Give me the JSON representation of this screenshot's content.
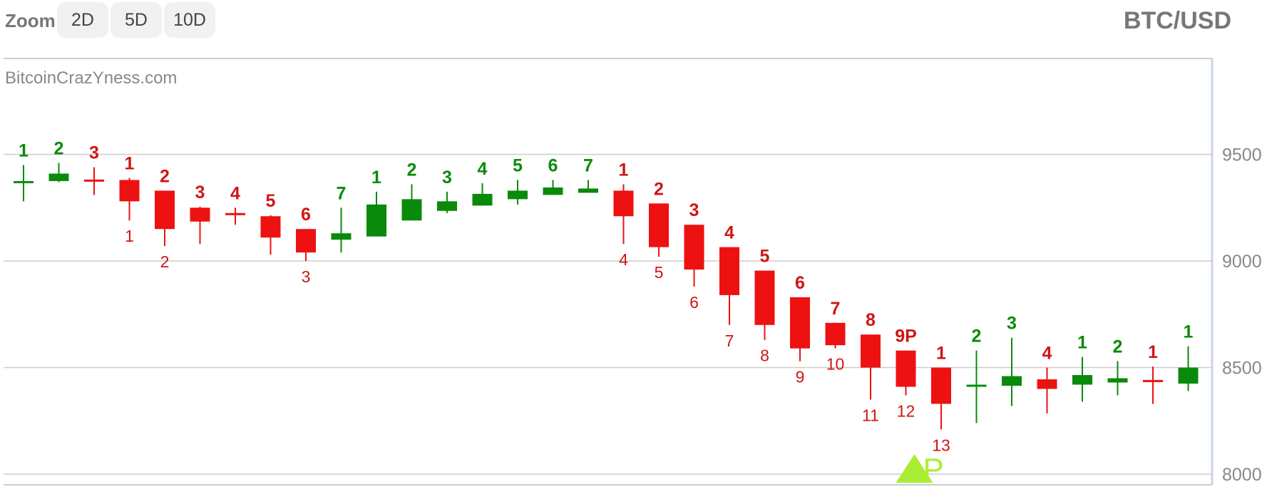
{
  "toolbar": {
    "zoom_label": "Zoom",
    "buttons": [
      "2D",
      "5D",
      "10D"
    ],
    "pair": "BTC/USD"
  },
  "colors": {
    "up": "#0a8a0a",
    "down": "#ee1111",
    "grid": "#cccccc",
    "axis_text": "#888888",
    "marker": "#aaee33",
    "label_red": "#d01515"
  },
  "chart_data": {
    "type": "candlestick",
    "watermark": "BitcoinCrazYness.com",
    "ylim": [
      7950,
      9950
    ],
    "y_ticks": [
      8000,
      8500,
      9000,
      9500
    ],
    "grid": true,
    "candles": [
      {
        "o": 9370,
        "h": 9450,
        "l": 9280,
        "c": 9375,
        "top": "1",
        "bottom": ""
      },
      {
        "o": 9375,
        "h": 9460,
        "l": 9370,
        "c": 9410,
        "top": "2",
        "bottom": ""
      },
      {
        "o": 9382,
        "h": 9440,
        "l": 9310,
        "c": 9378,
        "top": "3",
        "bottom": ""
      },
      {
        "o": 9380,
        "h": 9390,
        "l": 9190,
        "c": 9280,
        "top": "1",
        "bottom": "1"
      },
      {
        "o": 9330,
        "h": 9330,
        "l": 9070,
        "c": 9150,
        "top": "2",
        "bottom": "2"
      },
      {
        "o": 9250,
        "h": 9255,
        "l": 9080,
        "c": 9185,
        "top": "3",
        "bottom": ""
      },
      {
        "o": 9225,
        "h": 9250,
        "l": 9170,
        "c": 9215,
        "top": "4",
        "bottom": ""
      },
      {
        "o": 9210,
        "h": 9215,
        "l": 9030,
        "c": 9110,
        "top": "5",
        "bottom": ""
      },
      {
        "o": 9150,
        "h": 9150,
        "l": 9000,
        "c": 9040,
        "top": "6",
        "bottom": "3"
      },
      {
        "o": 9100,
        "h": 9250,
        "l": 9040,
        "c": 9130,
        "top": "7",
        "bottom": ""
      },
      {
        "o": 9115,
        "h": 9325,
        "l": 9115,
        "c": 9265,
        "top": "1",
        "bottom": ""
      },
      {
        "o": 9190,
        "h": 9360,
        "l": 9190,
        "c": 9290,
        "top": "2",
        "bottom": ""
      },
      {
        "o": 9235,
        "h": 9325,
        "l": 9225,
        "c": 9280,
        "top": "3",
        "bottom": ""
      },
      {
        "o": 9260,
        "h": 9365,
        "l": 9260,
        "c": 9315,
        "top": "4",
        "bottom": ""
      },
      {
        "o": 9290,
        "h": 9380,
        "l": 9265,
        "c": 9330,
        "top": "5",
        "bottom": ""
      },
      {
        "o": 9310,
        "h": 9380,
        "l": 9310,
        "c": 9345,
        "top": "6",
        "bottom": ""
      },
      {
        "o": 9320,
        "h": 9380,
        "l": 9320,
        "c": 9340,
        "top": "7",
        "bottom": ""
      },
      {
        "o": 9330,
        "h": 9360,
        "l": 9080,
        "c": 9210,
        "top": "1",
        "bottom": "4"
      },
      {
        "o": 9270,
        "h": 9270,
        "l": 9020,
        "c": 9065,
        "top": "2",
        "bottom": "5"
      },
      {
        "o": 9170,
        "h": 9170,
        "l": 8880,
        "c": 8960,
        "top": "3",
        "bottom": "6"
      },
      {
        "o": 9065,
        "h": 9065,
        "l": 8700,
        "c": 8840,
        "top": "4",
        "bottom": "7"
      },
      {
        "o": 8955,
        "h": 8955,
        "l": 8630,
        "c": 8700,
        "top": "5",
        "bottom": "8"
      },
      {
        "o": 8830,
        "h": 8830,
        "l": 8530,
        "c": 8590,
        "top": "6",
        "bottom": "9"
      },
      {
        "o": 8710,
        "h": 8710,
        "l": 8590,
        "c": 8605,
        "top": "7",
        "bottom": "10"
      },
      {
        "o": 8655,
        "h": 8655,
        "l": 8350,
        "c": 8500,
        "top": "8",
        "bottom": "11"
      },
      {
        "o": 8580,
        "h": 8580,
        "l": 8370,
        "c": 8410,
        "top": "9P",
        "bottom": "12"
      },
      {
        "o": 8500,
        "h": 8500,
        "l": 8210,
        "c": 8330,
        "top": "1",
        "bottom": "13"
      },
      {
        "o": 8420,
        "h": 8580,
        "l": 8240,
        "c": 8420,
        "top": "2",
        "bottom": ""
      },
      {
        "o": 8415,
        "h": 8640,
        "l": 8320,
        "c": 8460,
        "top": "3",
        "bottom": ""
      },
      {
        "o": 8445,
        "h": 8500,
        "l": 8285,
        "c": 8400,
        "top": "4",
        "bottom": ""
      },
      {
        "o": 8420,
        "h": 8550,
        "l": 8340,
        "c": 8465,
        "top": "1",
        "bottom": ""
      },
      {
        "o": 8430,
        "h": 8530,
        "l": 8370,
        "c": 8450,
        "top": "2",
        "bottom": ""
      },
      {
        "o": 8442,
        "h": 8505,
        "l": 8330,
        "c": 8438,
        "top": "1",
        "bottom": ""
      },
      {
        "o": 8425,
        "h": 8600,
        "l": 8390,
        "c": 8500,
        "top": "1",
        "bottom": ""
      }
    ],
    "marker": {
      "index": 25,
      "label": "P"
    }
  }
}
